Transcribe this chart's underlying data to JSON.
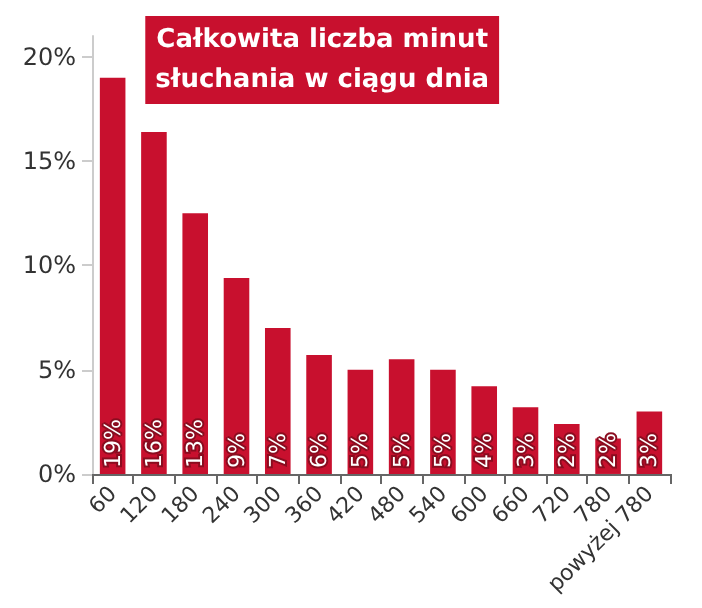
{
  "chart_data": {
    "type": "bar",
    "title": "Całkowita liczba minut\nsłuchania w ciągu dnia",
    "categories": [
      "60",
      "120",
      "180",
      "240",
      "300",
      "360",
      "420",
      "480",
      "540",
      "600",
      "660",
      "720",
      "780",
      "powyżej 780"
    ],
    "values": [
      19.0,
      16.4,
      12.5,
      9.4,
      7.0,
      5.7,
      5.0,
      5.5,
      5.0,
      4.2,
      3.2,
      2.4,
      1.7,
      3.0
    ],
    "value_labels": [
      "19%",
      "16%",
      "13%",
      "9%",
      "7%",
      "6%",
      "5%",
      "5%",
      "5%",
      "4%",
      "3%",
      "2%",
      "2%",
      "3%"
    ],
    "color": "#c8102e",
    "ylim": [
      0,
      21
    ],
    "yticks": [
      {
        "value": 0,
        "label": "0%"
      },
      {
        "value": 5,
        "label": "5%"
      },
      {
        "value": 10,
        "label": "10%"
      },
      {
        "value": 15,
        "label": "15%"
      },
      {
        "value": 20,
        "label": "20%"
      }
    ],
    "grid": false
  }
}
